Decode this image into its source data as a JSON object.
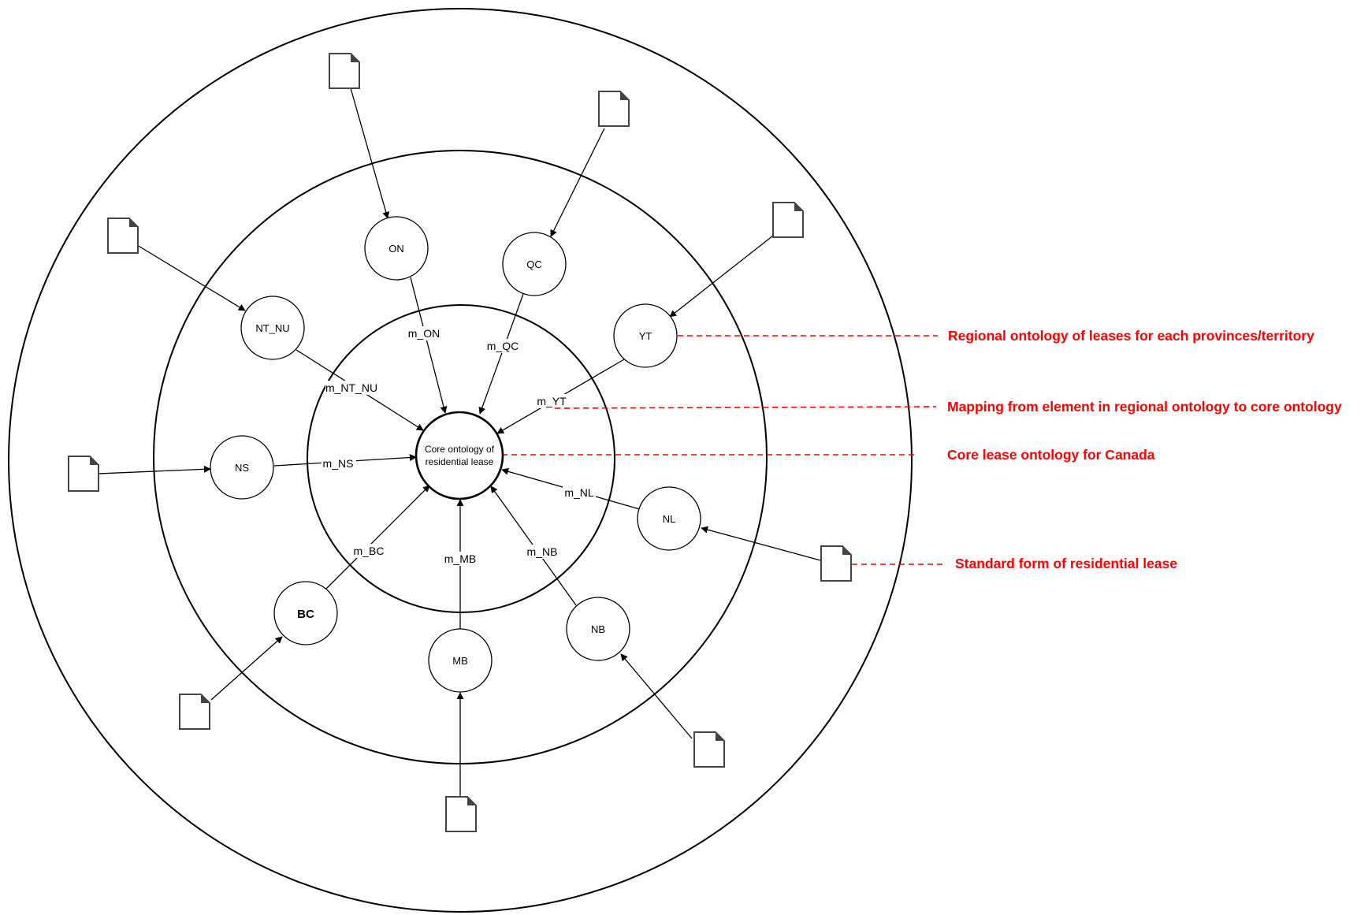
{
  "core": {
    "line1": "Core ontology of",
    "line2": "residential lease"
  },
  "nodes": {
    "on": "ON",
    "qc": "QC",
    "nt_nu": "NT_NU",
    "yt": "YT",
    "ns": "NS",
    "nl": "NL",
    "bc": "BC",
    "mb": "MB",
    "nb": "NB"
  },
  "mappings": {
    "on": "m_ON",
    "qc": "m_QC",
    "nt_nu": "m_NT_NU",
    "yt": "m_YT",
    "ns": "m_NS",
    "nl": "m_NL",
    "bc": "m_BC",
    "mb": "m_MB",
    "nb": "m_NB"
  },
  "legend": {
    "regional": "Regional ontology of leases for each provinces/territory",
    "mapping": "Mapping from element in regional ontology to core ontology",
    "core": "Core lease ontology for Canada",
    "standard": "Standard form of residential lease"
  },
  "colors": {
    "legend": "#ff0000",
    "stroke": "#000000"
  }
}
